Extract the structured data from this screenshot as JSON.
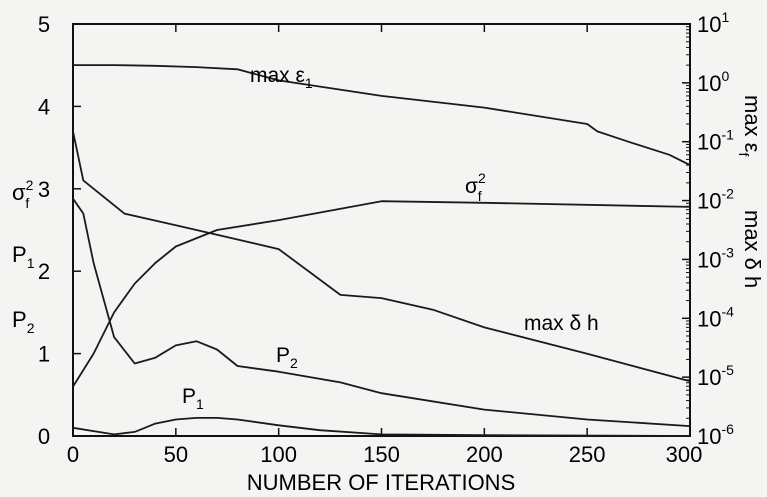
{
  "chart_data": {
    "type": "line",
    "xlabel": "NUMBER OF ITERATIONS",
    "xlim": [
      0,
      300
    ],
    "x_ticks": [
      0,
      50,
      100,
      150,
      200,
      250,
      300
    ],
    "left_axis": {
      "ylim": [
        0,
        5
      ],
      "ticks": [
        0,
        1,
        2,
        3,
        4,
        5
      ],
      "labels": [
        "σ",
        "2",
        "f",
        "P",
        "1",
        "P",
        "2"
      ]
    },
    "right_axis": {
      "scale": "log",
      "ylim": [
        1e-06,
        10
      ],
      "ticks": [
        {
          "base": "10",
          "exp": "1"
        },
        {
          "base": "10",
          "exp": "0"
        },
        {
          "base": "10",
          "exp": "-1"
        },
        {
          "base": "10",
          "exp": "-2"
        },
        {
          "base": "10",
          "exp": "-3"
        },
        {
          "base": "10",
          "exp": "-4"
        },
        {
          "base": "10",
          "exp": "-5"
        },
        {
          "base": "10",
          "exp": "-6"
        }
      ],
      "label_epsilon": "max ε",
      "label_epsilon_sub": "f",
      "label_delta": "max δ h"
    },
    "series": [
      {
        "name": "max ε1",
        "axis": "right",
        "label": {
          "text": "max ε",
          "sub": "1"
        },
        "x": [
          0,
          20,
          40,
          60,
          80,
          100,
          150,
          200,
          250,
          255,
          270,
          290,
          300
        ],
        "y": [
          2.0,
          2.0,
          1.95,
          1.85,
          1.7,
          1.1,
          0.6,
          0.38,
          0.2,
          0.15,
          0.1,
          0.06,
          0.04
        ]
      },
      {
        "name": "max δh",
        "axis": "right",
        "label": {
          "text": "max δ h"
        },
        "x": [
          0,
          5,
          25,
          50,
          75,
          100,
          130,
          150,
          175,
          200,
          250,
          300
        ],
        "y": [
          0.15,
          0.022,
          0.006,
          0.0038,
          0.0024,
          0.0015,
          0.00025,
          0.00022,
          0.00014,
          7e-05,
          2.5e-05,
          8.5e-06
        ]
      },
      {
        "name": "σf²",
        "axis": "left",
        "label": {
          "text": "σ",
          "sup": "2",
          "sub": "f"
        },
        "x": [
          0,
          10,
          20,
          30,
          40,
          50,
          70,
          100,
          150,
          200,
          300
        ],
        "y": [
          0.6,
          1.0,
          1.5,
          1.85,
          2.1,
          2.3,
          2.5,
          2.62,
          2.85,
          2.83,
          2.78
        ]
      },
      {
        "name": "P2",
        "axis": "left",
        "label": {
          "text": "P",
          "sub": "2"
        },
        "x": [
          0,
          5,
          10,
          20,
          30,
          40,
          50,
          60,
          70,
          80,
          100,
          130,
          150,
          200,
          250,
          300
        ],
        "y": [
          2.88,
          2.7,
          2.1,
          1.2,
          0.88,
          0.95,
          1.1,
          1.15,
          1.05,
          0.85,
          0.78,
          0.65,
          0.52,
          0.32,
          0.2,
          0.12
        ]
      },
      {
        "name": "P1",
        "axis": "left",
        "label": {
          "text": "P",
          "sub": "1"
        },
        "x": [
          0,
          10,
          20,
          30,
          40,
          50,
          60,
          70,
          80,
          100,
          120,
          150,
          200,
          300
        ],
        "y": [
          0.1,
          0.06,
          0.02,
          0.05,
          0.15,
          0.2,
          0.22,
          0.22,
          0.2,
          0.13,
          0.07,
          0.02,
          0.01,
          0.0
        ]
      }
    ],
    "grid": false,
    "legend": "none"
  }
}
